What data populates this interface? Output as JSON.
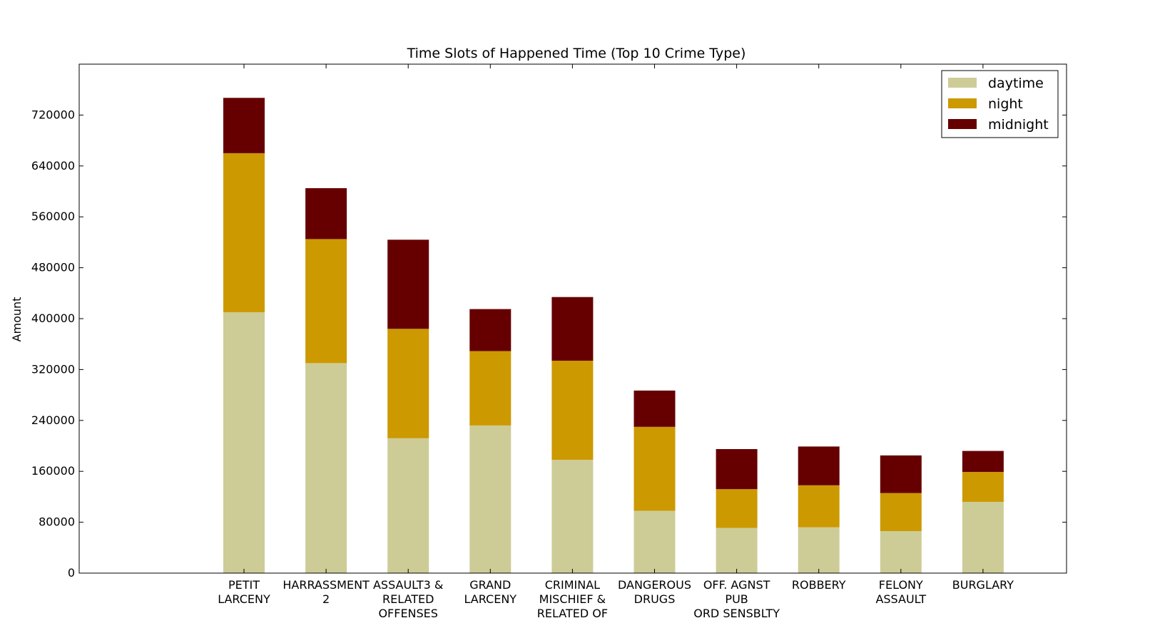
{
  "chart_data": {
    "type": "bar",
    "stacked": true,
    "title": "Time Slots of Happened Time (Top 10 Crime Type)",
    "xlabel": "",
    "ylabel": "Amount",
    "ylim": [
      0,
      800000
    ],
    "yticks": [
      0,
      80000,
      160000,
      240000,
      320000,
      400000,
      480000,
      560000,
      640000,
      720000
    ],
    "categories": [
      "PETIT\nLARCENY",
      "HARRASSMENT\n2",
      "ASSAULT3 &\nRELATED\nOFFENSES",
      "GRAND\nLARCENY",
      "CRIMINAL\nMISCHIEF &\nRELATED OF",
      "DANGEROUS\nDRUGS",
      "OFF. AGNST\nPUB\nORD SENSBLTY",
      "ROBBERY",
      "FELONY\nASSAULT",
      "BURGLARY"
    ],
    "series": [
      {
        "name": "daytime",
        "color": "#cdcc97",
        "values": [
          410000,
          330000,
          212000,
          232000,
          178000,
          98000,
          71000,
          72000,
          66000,
          112000
        ]
      },
      {
        "name": "night",
        "color": "#cc9900",
        "values": [
          250000,
          195000,
          172000,
          117000,
          156000,
          132000,
          61000,
          66000,
          60000,
          47000
        ]
      },
      {
        "name": "midnight",
        "color": "#660000",
        "values": [
          87000,
          80000,
          140000,
          66000,
          100000,
          57000,
          63000,
          61000,
          59000,
          33000
        ]
      }
    ],
    "legend_position": "top-right",
    "grid": false
  }
}
